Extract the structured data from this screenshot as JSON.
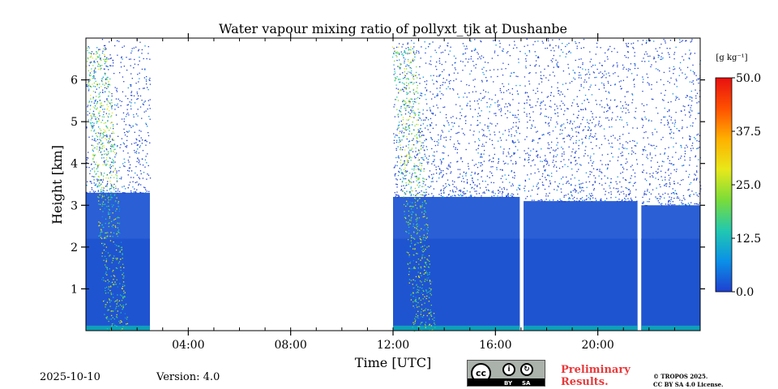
{
  "chart_data": {
    "type": "heatmap",
    "title": "Water vapour mixing ratio of pollyxt_tjk at Dushanbe",
    "xlabel": "Time [UTC]",
    "ylabel": "Height [km]",
    "xlim": [
      0,
      24
    ],
    "ylim": [
      0,
      7
    ],
    "x_ticks": [
      {
        "value": 4,
        "label": "04:00"
      },
      {
        "value": 8,
        "label": "08:00"
      },
      {
        "value": 12,
        "label": "12:00"
      },
      {
        "value": 16,
        "label": "16:00"
      },
      {
        "value": 20,
        "label": "20:00"
      }
    ],
    "y_ticks": [
      {
        "value": 1,
        "label": "1"
      },
      {
        "value": 2,
        "label": "2"
      },
      {
        "value": 3,
        "label": "3"
      },
      {
        "value": 4,
        "label": "4"
      },
      {
        "value": 5,
        "label": "5"
      },
      {
        "value": 6,
        "label": "6"
      }
    ],
    "colorbar": {
      "unit_label": "[g kg⁻¹]",
      "range": [
        0,
        50
      ],
      "ticks": [
        "0.0",
        "12.5",
        "25.0",
        "37.5",
        "50.0"
      ],
      "colors": [
        "#1f3fd0",
        "#0a90e8",
        "#22c8b0",
        "#7adc3a",
        "#e8e81a",
        "#ffb000",
        "#ff5000",
        "#e81010"
      ]
    },
    "data_segments": [
      {
        "start": 0.0,
        "end": 2.5,
        "boundary_layer_top_km": 3.3,
        "moist_plume": true
      },
      {
        "start": 12.0,
        "end": 16.95,
        "boundary_layer_top_km": 3.2,
        "moist_plume": true
      },
      {
        "start": 17.1,
        "end": 21.55,
        "boundary_layer_top_km": 3.1,
        "moist_plume": false
      },
      {
        "start": 21.7,
        "end": 24.0,
        "boundary_layer_top_km": 3.0,
        "moist_plume": false
      }
    ],
    "background_value_g_kg": 4
  },
  "footer": {
    "date": "2025-10-10",
    "version": "Version: 4.0",
    "preliminary_line1": "Preliminary",
    "preliminary_line2": "Results.",
    "copyright_line1": "© TROPOS 2025.",
    "copyright_line2": "CC BY SA 4.0 License.",
    "cc_badge": {
      "cc": "cc",
      "by": "BY",
      "sa": "SA"
    }
  }
}
